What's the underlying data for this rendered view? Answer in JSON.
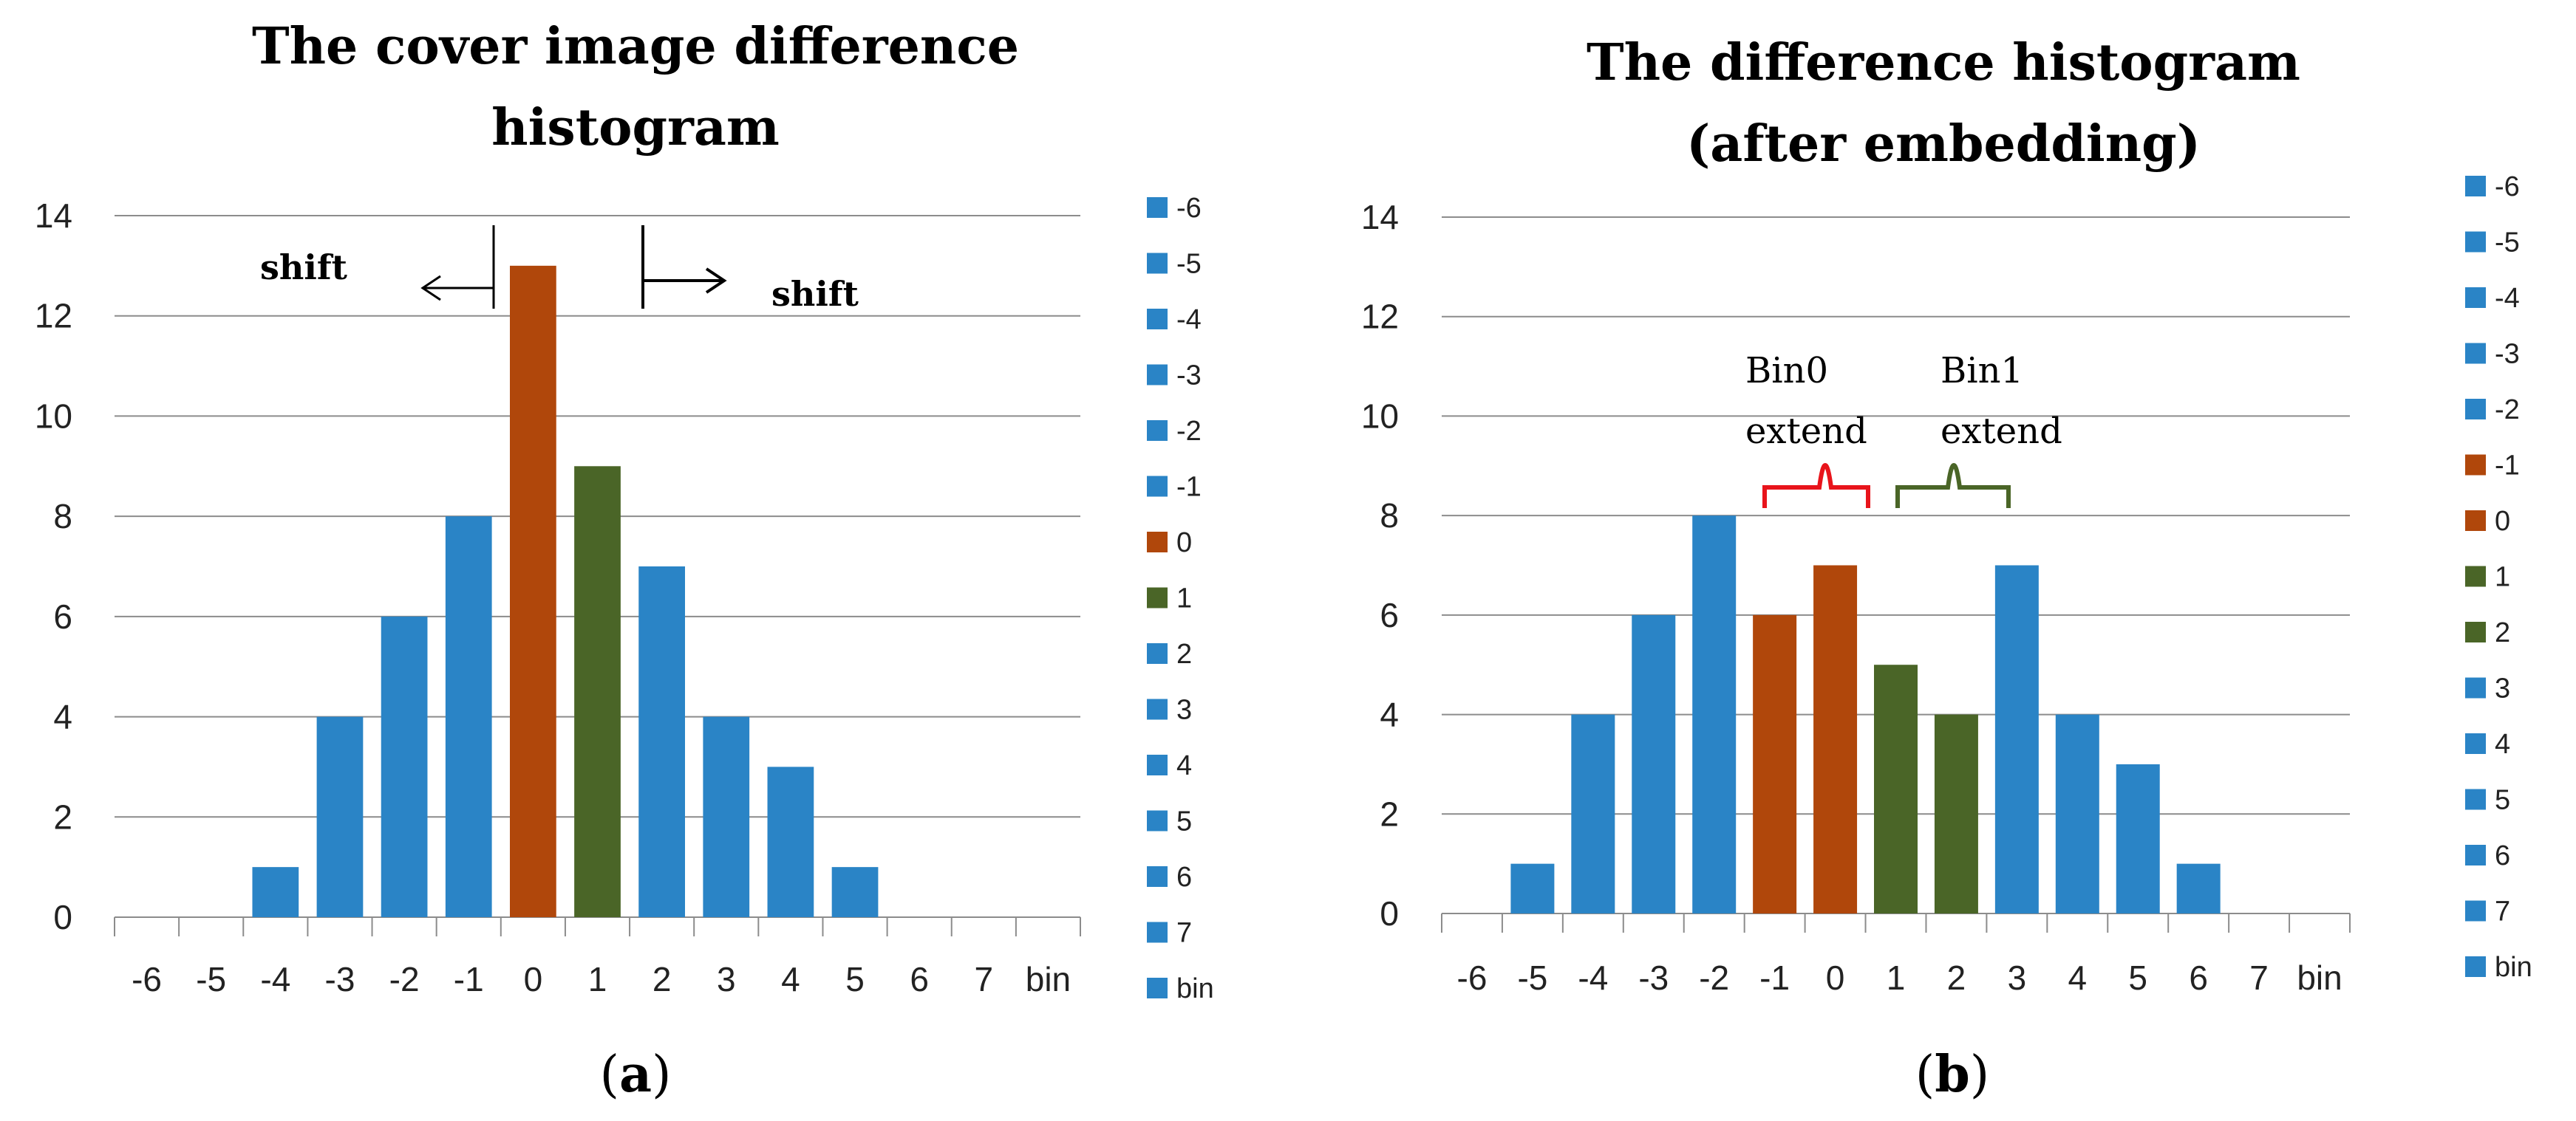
{
  "chart_data": [
    {
      "type": "bar",
      "title_lines": [
        "The cover image difference",
        "histogram"
      ],
      "categories": [
        "-6",
        "-5",
        "-4",
        "-3",
        "-2",
        "-1",
        "0",
        "1",
        "2",
        "3",
        "4",
        "5",
        "6",
        "7",
        "bin"
      ],
      "values": [
        0,
        0,
        1,
        4,
        6,
        8,
        13,
        9,
        7,
        4,
        3,
        1,
        0,
        0,
        0
      ],
      "bar_colors": [
        "#2a84c6",
        "#2a84c6",
        "#2a84c6",
        "#2a84c6",
        "#2a84c6",
        "#2a84c6",
        "#b0470b",
        "#4a6527",
        "#2a84c6",
        "#2a84c6",
        "#2a84c6",
        "#2a84c6",
        "#2a84c6",
        "#2a84c6",
        "#2a84c6"
      ],
      "ylim": [
        0,
        14
      ],
      "yticks": [
        "0",
        "2",
        "4",
        "6",
        "8",
        "10",
        "12",
        "14"
      ],
      "legend": [
        "-6",
        "-5",
        "-4",
        "-3",
        "-2",
        "-1",
        "0",
        "1",
        "2",
        "3",
        "4",
        "5",
        "6",
        "7",
        "bin"
      ],
      "legend_colors": [
        "#2a84c6",
        "#2a84c6",
        "#2a84c6",
        "#2a84c6",
        "#2a84c6",
        "#2a84c6",
        "#b0470b",
        "#4a6527",
        "#2a84c6",
        "#2a84c6",
        "#2a84c6",
        "#2a84c6",
        "#2a84c6",
        "#2a84c6",
        "#2a84c6"
      ],
      "annotations": {
        "shift_left": "shift",
        "shift_right": "shift"
      },
      "caption": {
        "open": "(",
        "letter": "a",
        "close": ")"
      }
    },
    {
      "type": "bar",
      "title_lines": [
        "The difference histogram",
        "(after embedding)"
      ],
      "categories": [
        "-6",
        "-5",
        "-4",
        "-3",
        "-2",
        "-1",
        "0",
        "1",
        "2",
        "3",
        "4",
        "5",
        "6",
        "7",
        "bin"
      ],
      "values": [
        0,
        1,
        4,
        6,
        8,
        6,
        7,
        5,
        4,
        7,
        4,
        3,
        1,
        0,
        0
      ],
      "bar_colors": [
        "#2a84c6",
        "#2a84c6",
        "#2a84c6",
        "#2a84c6",
        "#2a84c6",
        "#b0470b",
        "#b0470b",
        "#4a6527",
        "#4a6527",
        "#2a84c6",
        "#2a84c6",
        "#2a84c6",
        "#2a84c6",
        "#2a84c6",
        "#2a84c6"
      ],
      "ylim": [
        0,
        14
      ],
      "yticks": [
        "0",
        "2",
        "4",
        "6",
        "8",
        "10",
        "12",
        "14"
      ],
      "legend": [
        "-6",
        "-5",
        "-4",
        "-3",
        "-2",
        "-1",
        "0",
        "1",
        "2",
        "3",
        "4",
        "5",
        "6",
        "7",
        "bin"
      ],
      "legend_colors": [
        "#2a84c6",
        "#2a84c6",
        "#2a84c6",
        "#2a84c6",
        "#2a84c6",
        "#b0470b",
        "#b0470b",
        "#4a6527",
        "#4a6527",
        "#2a84c6",
        "#2a84c6",
        "#2a84c6",
        "#2a84c6",
        "#2a84c6",
        "#2a84c6"
      ],
      "annotations": {
        "bin0_line1": "Bin0",
        "bin0_line2": "extend",
        "bin1_line1": "Bin1",
        "bin1_line2": "extend",
        "bin0_color": "#e8141b",
        "bin1_color": "#4a6527"
      },
      "caption": {
        "open": "(",
        "letter": "b",
        "close": ")"
      }
    }
  ]
}
